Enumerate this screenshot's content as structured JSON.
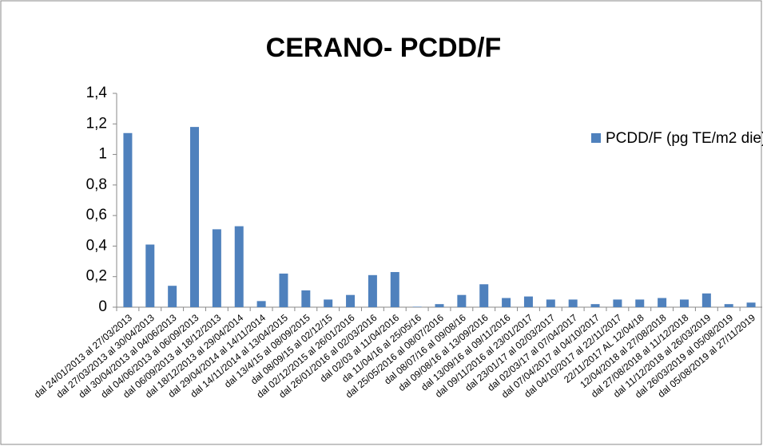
{
  "chart_data": {
    "type": "bar",
    "title": "CERANO- PCDD/F",
    "categories": [
      "dal 24/01/2013 al 27/03/2013",
      "dal 27/03/2013 al 30/04/2013",
      "dal 30/04/2013 al 04/06/2013",
      "dal 04/06/2013 al 06/09/2013",
      "dal 06/09/2013 al 18/12/2013",
      "dal 18/12/2013 al 29/04/2014",
      "dal 29/04/2014 al 14/11/2014",
      "dal 14/11/2014 al 13/04/2015",
      "dal 13/4/15 al 08/09/2015",
      "dal 08/09/15 al 02/12/15",
      "dal 02/12/2015 al 26/01/2016",
      "dal 26/01/2016  al 02/03/2016",
      "dal 02/03 al 11/04/2016",
      "da 11/04/16 al 25/05/16",
      "dal 25/05/2016 al 08/07/2016",
      "dal 08/07/16 al 09/08/16",
      "dal 09/08/16 al 13/09/2016",
      "dal 13/09/16 al 09/11/2016",
      "dal 09/11/2016 al 23/01/2017",
      "dal 23/01/17 al 02/03/2017",
      "dal 02/03/17 al 07/04/2017",
      "dal 07/04/2017 al 04/10/2017",
      "dal 04/10/2017 al 22/11/2017",
      "22/11/2017 AL 12/04/18",
      "12/04/2018 al 27/08/2018",
      "dal 27/08/2018 al 11/12/2018",
      "dal 11/12/2018 al 26/03/2019",
      "dal 26/03/2019 al 05/08/2019",
      "dal 05/08/2019 al 27/11/2019"
    ],
    "series": [
      {
        "name": "PCDD/F (pg TE/m2 die)",
        "color": "#4f81bd",
        "values": [
          1.14,
          0.41,
          0.14,
          1.18,
          0.51,
          0.53,
          0.04,
          0.22,
          0.11,
          0.05,
          0.08,
          0.21,
          0.23,
          0.003,
          0.02,
          0.08,
          0.15,
          0.06,
          0.07,
          0.05,
          0.05,
          0.02,
          0.05,
          0.05,
          0.06,
          0.05,
          0.09,
          0.02,
          0.03
        ]
      }
    ],
    "ylim": [
      0,
      1.4
    ],
    "yticks": [
      0,
      {
        "value": 0.2,
        "label": "0,2"
      },
      {
        "value": 0.4,
        "label": "0,4"
      },
      {
        "value": 0.6,
        "label": "0,6"
      },
      {
        "value": 0.8,
        "label": "0,8"
      },
      1,
      {
        "value": 1.2,
        "label": "1,2"
      },
      {
        "value": 1.4,
        "label": "1,4"
      }
    ],
    "grid": false,
    "legend": "right"
  }
}
